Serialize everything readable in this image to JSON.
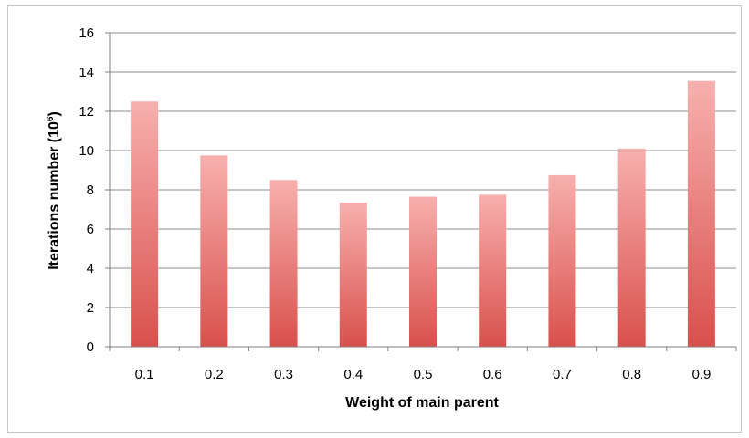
{
  "chart_data": {
    "type": "bar",
    "categories": [
      "0.1",
      "0.2",
      "0.3",
      "0.4",
      "0.5",
      "0.6",
      "0.7",
      "0.8",
      "0.9"
    ],
    "values": [
      12.5,
      9.75,
      8.5,
      7.35,
      7.65,
      7.75,
      8.75,
      10.1,
      13.55
    ],
    "xlabel": "Weight of main parent",
    "ylabel": "Iterations number (10",
    "ylabel_superscript": "6",
    "ylabel_suffix": ")",
    "ylim": [
      0,
      16
    ],
    "yticks": [
      "0",
      "2",
      "4",
      "6",
      "8",
      "10",
      "12",
      "14",
      "16"
    ],
    "grid": true,
    "legend": "none",
    "colors": {
      "bar_top": "#f7b0ae",
      "bar_bottom": "#d9504c",
      "grid": "#8c8c8c",
      "axis": "#7f7f7f"
    }
  }
}
